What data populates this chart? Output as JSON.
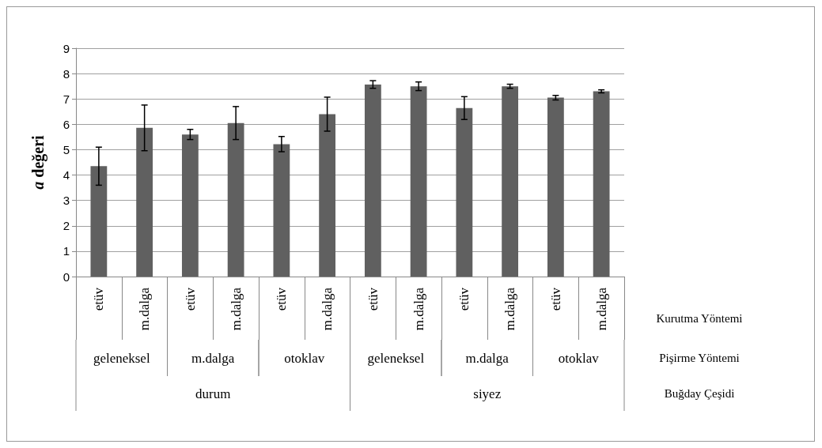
{
  "chart_data": {
    "type": "bar",
    "ylabel": "a değeri",
    "categories": [
      "etüv",
      "m.dalga",
      "etüv",
      "m.dalga",
      "etüv",
      "m.dalga",
      "etüv",
      "m.dalga",
      "etüv",
      "m.dalga",
      "etüv",
      "m.dalga"
    ],
    "values": [
      4.35,
      5.86,
      5.6,
      6.05,
      5.22,
      6.4,
      7.57,
      7.5,
      6.64,
      7.5,
      7.05,
      7.3
    ],
    "errors": [
      0.75,
      0.9,
      0.2,
      0.65,
      0.3,
      0.67,
      0.15,
      0.17,
      0.45,
      0.08,
      0.09,
      0.06
    ],
    "color": "#606060",
    "ylim": [
      0,
      9
    ],
    "yticks": [
      0,
      1,
      2,
      3,
      4,
      5,
      6,
      7,
      8,
      9
    ],
    "grid": "y",
    "annotations": [
      "geleneksel",
      "m.dalga",
      "otoklav",
      "geleneksel",
      "m.dalga",
      "otoklav",
      "durum",
      "siyez",
      "Kurutma Yöntemi",
      "Pişirme Yöntemi",
      "Buğday Çeşidi"
    ]
  }
}
